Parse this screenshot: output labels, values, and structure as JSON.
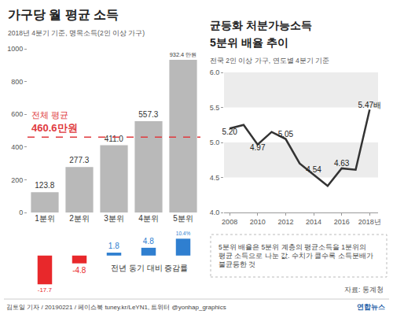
{
  "credit": "김토일 기자 / 20190221 / 페이스북 tuney.kr/LeYN1, 트위터 @yonhap_graphics",
  "logo": "연합뉴스",
  "chart_data": [
    {
      "type": "bar",
      "title": "가구당 월 평균 소득",
      "subtitle": "2018년 4분기 기준, 명목소득(2인 이상 가구)",
      "categories": [
        "1분위",
        "2분위",
        "3분위",
        "4분위",
        "5분위"
      ],
      "values": [
        123.8,
        277.3,
        411.0,
        557.3,
        932.4
      ],
      "value_labels": [
        "123.8",
        "277.3",
        "411.0",
        "557.3",
        "932.4 만원"
      ],
      "data_labels": true,
      "color": "#b9b9b9",
      "ylim": [
        0,
        1000
      ],
      "yticks": [
        0,
        200,
        400,
        600,
        800,
        1000
      ],
      "grid": false,
      "average": {
        "value": 460.6,
        "label": "전체 평균",
        "value_label": "460.6만원",
        "color": "#e03a3e",
        "line_style": "dash"
      }
    },
    {
      "type": "bar",
      "title": "전년 동기 대비 증감률",
      "categories": [
        "1분위",
        "2분위",
        "3분위",
        "4분위",
        "5분위"
      ],
      "values": [
        -17.7,
        -4.8,
        1.8,
        4.8,
        10.4
      ],
      "value_labels": [
        "-17.7",
        "-4.8",
        "1.8",
        "4.8",
        "10.4%"
      ],
      "data_labels": true,
      "colors": [
        "#e8282b",
        "#e8282b",
        "#2f7fd0",
        "#2f7fd0",
        "#2f7fd0"
      ],
      "tick_labels": false,
      "ylim": [
        -20,
        12
      ]
    },
    {
      "type": "line",
      "title": "균등화 처분가능소득 5분위 배율 추이",
      "subtitle": "전국 2인 이상 가구, 연도별 4분기 기준",
      "x": [
        2008,
        2009,
        2010,
        2011,
        2012,
        2013,
        2014,
        2015,
        2016,
        2017,
        2018
      ],
      "values": [
        5.2,
        5.25,
        4.97,
        5.15,
        5.05,
        4.7,
        4.54,
        4.38,
        4.63,
        4.61,
        5.47
      ],
      "value_labels": [
        "5.20",
        null,
        "4.97",
        null,
        "5.05",
        null,
        "4.54",
        null,
        "4.63",
        null,
        "5.47배"
      ],
      "data_labels": true,
      "color": "#333333",
      "xlim": [
        2007.6,
        2018.6
      ],
      "xticks": [
        2008,
        2010,
        2012,
        2014,
        2016,
        {
          "value": 2018,
          "label": "2018년"
        }
      ],
      "ylim": [
        4.0,
        6.0
      ],
      "yticks": [
        {
          "value": 4.0,
          "label": "4.0"
        },
        4.5,
        {
          "value": 5.0,
          "label": "5.0"
        },
        5.5,
        {
          "value": 6.0,
          "label": "6.0"
        }
      ],
      "grid": false,
      "note": "5분위 배율은 5분위 계층의 평균소득을 1분위의 평균 소득으로 나눈 값. 수치가 클수록 소득분배가 불균등한 것",
      "source": "자료: 통계청"
    }
  ]
}
